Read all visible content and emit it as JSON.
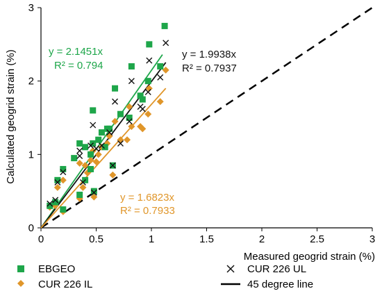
{
  "chart_data": {
    "type": "scatter",
    "xlabel": "Measured geogrid strain (%)",
    "ylabel": "Calculated geogrid strain (%)",
    "xlim": [
      0,
      3
    ],
    "ylim": [
      0,
      3
    ],
    "x_ticks": [
      "0",
      "0.5",
      "1",
      "1.5",
      "2",
      "2.5",
      "3"
    ],
    "y_ticks": [
      "0",
      "1",
      "2",
      "3"
    ],
    "grid": false,
    "legend_position": "bottom",
    "series": [
      {
        "name": "EBGEO",
        "marker": "square",
        "color": "#1ea64a",
        "points": [
          [
            0.08,
            0.3
          ],
          [
            0.13,
            0.35
          ],
          [
            0.15,
            0.65
          ],
          [
            0.2,
            0.8
          ],
          [
            0.2,
            0.25
          ],
          [
            0.35,
            1.15
          ],
          [
            0.35,
            0.45
          ],
          [
            0.4,
            0.65
          ],
          [
            0.45,
            0.8
          ],
          [
            0.45,
            1.0
          ],
          [
            0.47,
            1.6
          ],
          [
            0.47,
            1.15
          ],
          [
            0.48,
            0.5
          ],
          [
            0.52,
            1.2
          ],
          [
            0.55,
            1.3
          ],
          [
            0.58,
            1.1
          ],
          [
            0.6,
            1.35
          ],
          [
            0.62,
            1.35
          ],
          [
            0.65,
            0.85
          ],
          [
            0.67,
            1.9
          ],
          [
            0.72,
            1.55
          ],
          [
            0.8,
            1.5
          ],
          [
            0.82,
            2.2
          ],
          [
            0.9,
            1.8
          ],
          [
            0.92,
            1.75
          ],
          [
            0.97,
            2.0
          ],
          [
            0.98,
            2.5
          ],
          [
            1.08,
            2.2
          ],
          [
            1.12,
            2.75
          ],
          [
            0.4,
            1.1
          ],
          [
            0.3,
            0.95
          ]
        ]
      },
      {
        "name": "CUR 226 UL",
        "marker": "x",
        "color": "#111111",
        "points": [
          [
            0.08,
            0.33
          ],
          [
            0.13,
            0.38
          ],
          [
            0.15,
            0.62
          ],
          [
            0.2,
            0.76
          ],
          [
            0.35,
            1.05
          ],
          [
            0.35,
            0.98
          ],
          [
            0.38,
            0.62
          ],
          [
            0.45,
            1.12
          ],
          [
            0.47,
            1.4
          ],
          [
            0.48,
            0.48
          ],
          [
            0.5,
            1.08
          ],
          [
            0.55,
            1.12
          ],
          [
            0.62,
            1.3
          ],
          [
            0.65,
            0.85
          ],
          [
            0.67,
            1.72
          ],
          [
            0.72,
            1.15
          ],
          [
            0.8,
            1.45
          ],
          [
            0.82,
            2.0
          ],
          [
            0.9,
            1.65
          ],
          [
            0.92,
            1.62
          ],
          [
            0.97,
            1.85
          ],
          [
            0.98,
            2.28
          ],
          [
            1.08,
            2.05
          ],
          [
            1.13,
            2.52
          ]
        ]
      },
      {
        "name": "CUR 226 IL",
        "marker": "diamond",
        "color": "#e0962a",
        "points": [
          [
            0.08,
            0.28
          ],
          [
            0.13,
            0.3
          ],
          [
            0.15,
            0.55
          ],
          [
            0.2,
            0.65
          ],
          [
            0.2,
            0.22
          ],
          [
            0.35,
            0.88
          ],
          [
            0.35,
            0.4
          ],
          [
            0.38,
            0.55
          ],
          [
            0.42,
            0.75
          ],
          [
            0.45,
            0.92
          ],
          [
            0.47,
            1.05
          ],
          [
            0.48,
            0.42
          ],
          [
            0.52,
            1.0
          ],
          [
            0.55,
            1.1
          ],
          [
            0.6,
            1.15
          ],
          [
            0.62,
            1.25
          ],
          [
            0.65,
            0.72
          ],
          [
            0.67,
            1.45
          ],
          [
            0.72,
            1.2
          ],
          [
            0.78,
            1.2
          ],
          [
            0.8,
            1.65
          ],
          [
            0.82,
            1.38
          ],
          [
            0.9,
            1.38
          ],
          [
            0.92,
            1.35
          ],
          [
            0.97,
            1.55
          ],
          [
            0.98,
            1.9
          ],
          [
            1.08,
            1.72
          ],
          [
            1.13,
            2.15
          ],
          [
            0.5,
            0.9
          ],
          [
            0.4,
            0.85
          ]
        ]
      },
      {
        "name": "45 degree line",
        "marker": "none",
        "color": "#000000",
        "points": [
          [
            0,
            0
          ],
          [
            3,
            3
          ]
        ]
      }
    ],
    "trendlines": [
      {
        "series": "EBGEO",
        "color": "#1ea64a",
        "slope": 2.1451,
        "x_range": [
          0,
          1.1
        ]
      },
      {
        "series": "CUR 226 UL",
        "color": "#111111",
        "slope": 1.9938,
        "x_range": [
          0,
          1.13
        ]
      },
      {
        "series": "CUR 226 IL",
        "color": "#e0962a",
        "slope": 1.6823,
        "x_range": [
          0,
          1.13
        ]
      }
    ],
    "annotations": {
      "ebgeo_eq": "y = 2.1451x",
      "ebgeo_r2": "R² = 0.794",
      "ul_eq": "y = 1.9938x",
      "ul_r2": "R² = 0.7937",
      "il_eq": "y = 1.6823x",
      "il_r2": "R² = 0.7933"
    },
    "legend": [
      "EBGEO",
      "CUR 226 UL",
      "CUR 226 IL",
      "45 degree line"
    ]
  }
}
